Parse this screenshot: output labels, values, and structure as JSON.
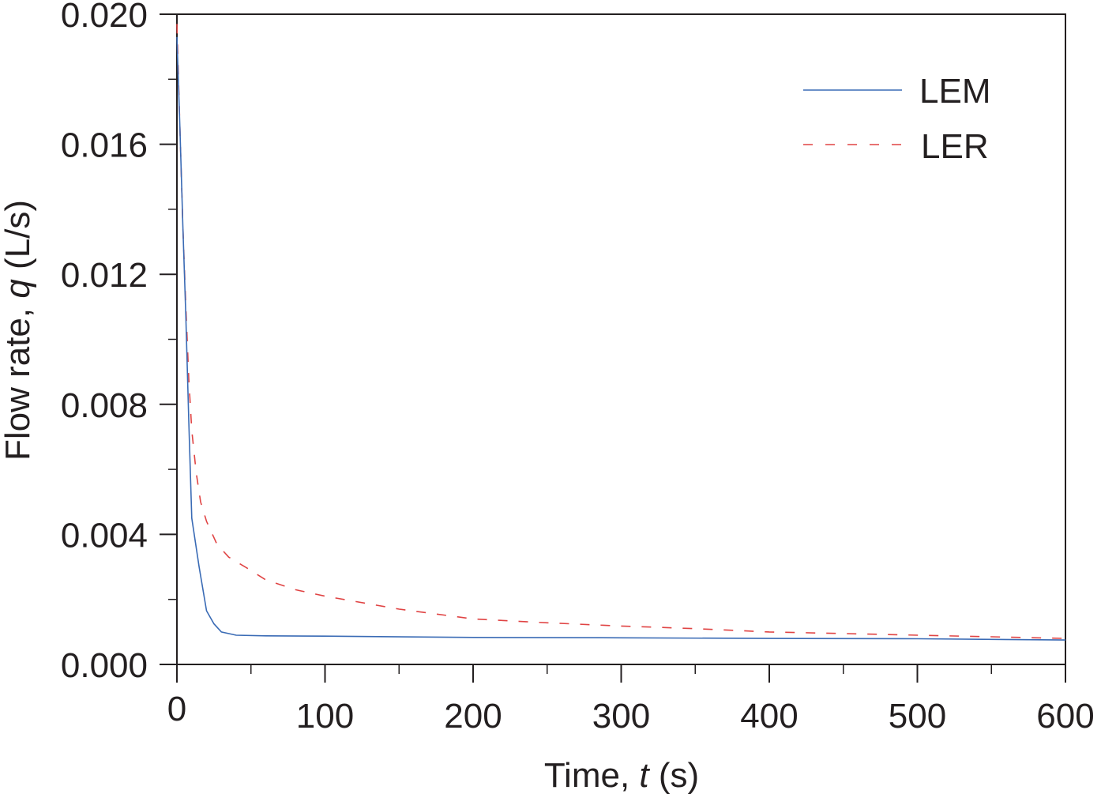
{
  "chart_data": {
    "type": "line",
    "title": "",
    "xlabel": "Time, t (s)",
    "xlabel_parts": {
      "prefix": "Time, ",
      "var": "t",
      "suffix": " (s)"
    },
    "ylabel": "Flow rate, q (L/s)",
    "ylabel_parts": {
      "prefix": "Flow rate, ",
      "var": "q",
      "suffix": " (L/s)"
    },
    "xlim": [
      0,
      600
    ],
    "ylim": [
      0.0,
      0.02
    ],
    "x_ticks": [
      0,
      100,
      200,
      300,
      400,
      500,
      600
    ],
    "x_tick_labels": [
      "0",
      "100",
      "200",
      "300",
      "400",
      "500",
      "600"
    ],
    "x_minor_ticks": [
      50,
      150,
      250,
      350,
      450,
      550
    ],
    "y_ticks": [
      0.0,
      0.004,
      0.008,
      0.012,
      0.016,
      0.02
    ],
    "y_tick_labels": [
      "0.000",
      "0.004",
      "0.008",
      "0.012",
      "0.016",
      "0.020"
    ],
    "y_minor_ticks": [
      0.002,
      0.006,
      0.01,
      0.014,
      0.018
    ],
    "grid": false,
    "legend_position": "upper right",
    "series": [
      {
        "name": "LEM",
        "style": "solid",
        "color": "#3a6bb5",
        "x": [
          0,
          2,
          4,
          6,
          8,
          10,
          15,
          20,
          25,
          30,
          40,
          60,
          100,
          200,
          300,
          400,
          500,
          600
        ],
        "y": [
          0.0193,
          0.0165,
          0.0135,
          0.0107,
          0.0075,
          0.0045,
          0.003,
          0.00165,
          0.00125,
          0.001,
          0.0009,
          0.00088,
          0.00087,
          0.00083,
          0.00082,
          0.0008,
          0.00079,
          0.00075
        ]
      },
      {
        "name": "LER",
        "style": "dashed",
        "color": "#e04444",
        "x": [
          0,
          2,
          4,
          6,
          8,
          10,
          13,
          16,
          20,
          27,
          35,
          46,
          60,
          80,
          100,
          150,
          200,
          250,
          300,
          350,
          400,
          450,
          500,
          550,
          600
        ],
        "y": [
          0.0197,
          0.0165,
          0.0135,
          0.011,
          0.0088,
          0.0072,
          0.0059,
          0.005,
          0.0044,
          0.0037,
          0.0033,
          0.003,
          0.0026,
          0.0023,
          0.0021,
          0.0017,
          0.0014,
          0.00128,
          0.00118,
          0.0011,
          0.001,
          0.00095,
          0.0009,
          0.00085,
          0.0008
        ]
      }
    ]
  },
  "legend": {
    "items": [
      {
        "label": "LEM",
        "color": "#3a6bb5",
        "style": "solid"
      },
      {
        "label": "LER",
        "color": "#e04444",
        "style": "dashed"
      }
    ]
  },
  "colors": {
    "axis": "#231f20",
    "lem": "#3a6bb5",
    "ler": "#e04444"
  }
}
